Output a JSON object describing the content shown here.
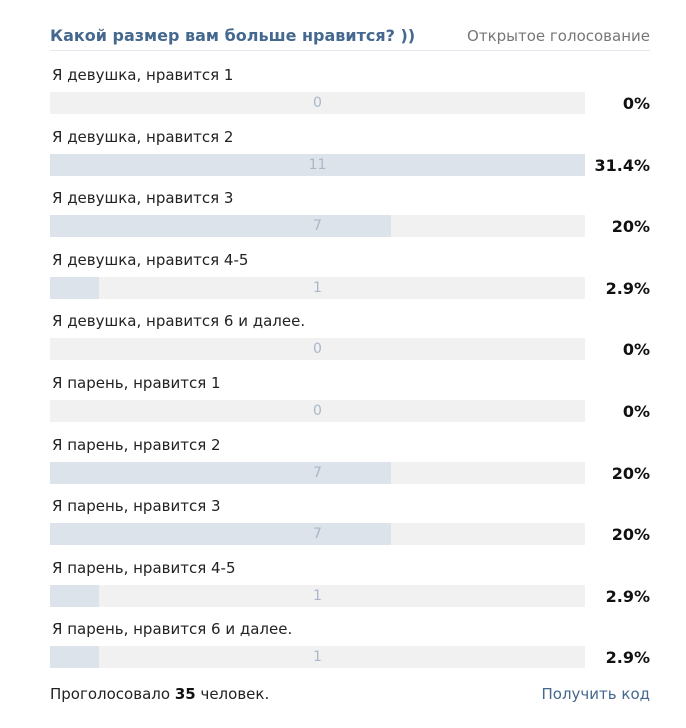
{
  "poll": {
    "title": "Какой размер вам больше нравится? ))",
    "type": "Открытое голосование",
    "answers": [
      {
        "label": "Я девушка, нравится 1",
        "count": "0",
        "percent": "0%",
        "fraction": 0
      },
      {
        "label": "Я девушка, нравится 2",
        "count": "11",
        "percent": "31.4%",
        "fraction": 0.314
      },
      {
        "label": "Я девушка, нравится 3",
        "count": "7",
        "percent": "20%",
        "fraction": 0.2
      },
      {
        "label": "Я девушка, нравится 4-5",
        "count": "1",
        "percent": "2.9%",
        "fraction": 0.029
      },
      {
        "label": "Я девушка, нравится 6 и далее.",
        "count": "0",
        "percent": "0%",
        "fraction": 0
      },
      {
        "label": "Я парень, нравится 1",
        "count": "0",
        "percent": "0%",
        "fraction": 0
      },
      {
        "label": "Я парень, нравится 2",
        "count": "7",
        "percent": "20%",
        "fraction": 0.2
      },
      {
        "label": "Я парень, нравится 3",
        "count": "7",
        "percent": "20%",
        "fraction": 0.2
      },
      {
        "label": "Я парень, нравится 4-5",
        "count": "1",
        "percent": "2.9%",
        "fraction": 0.029
      },
      {
        "label": "Я парень, нравится 6 и далее.",
        "count": "1",
        "percent": "2.9%",
        "fraction": 0.029
      }
    ],
    "footer": {
      "voted_prefix": "Проголосовало",
      "voted_count": "35",
      "voted_suffix": "человек.",
      "get_code": "Получить код"
    }
  }
}
